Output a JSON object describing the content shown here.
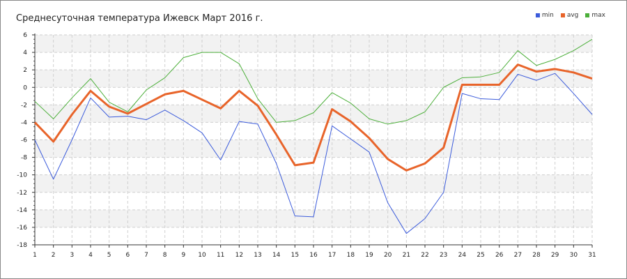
{
  "chart_data": {
    "type": "line",
    "title": "Среднесуточная температура Ижевск  Март 2016 г.",
    "x": [
      1,
      2,
      3,
      4,
      5,
      6,
      7,
      8,
      9,
      10,
      11,
      12,
      13,
      14,
      15,
      16,
      17,
      18,
      19,
      20,
      21,
      22,
      23,
      24,
      25,
      26,
      27,
      28,
      29,
      30,
      31
    ],
    "xlim": [
      1,
      31
    ],
    "ylim": [
      -18,
      6
    ],
    "yticks": [
      6,
      4,
      2,
      0,
      -2,
      -4,
      -6,
      -8,
      -10,
      -12,
      -14,
      -16,
      -18
    ],
    "grid": true,
    "legend_position": "top-right",
    "series": [
      {
        "name": "min",
        "color": "#3b5bdb",
        "values": [
          -6.0,
          -10.5,
          -6.0,
          -1.2,
          -3.4,
          -3.3,
          -3.7,
          -2.6,
          -3.8,
          -5.2,
          -8.3,
          -3.9,
          -4.2,
          -8.7,
          -14.7,
          -14.8,
          -4.4,
          -5.9,
          -7.4,
          -13.2,
          -16.7,
          -15.0,
          -12.0,
          -0.7,
          -1.3,
          -1.4,
          1.5,
          0.8,
          1.6,
          -0.7,
          -3.1
        ]
      },
      {
        "name": "avg",
        "color": "#e8642a",
        "values": [
          -4.0,
          -6.2,
          -3.1,
          -0.4,
          -2.2,
          -3.0,
          -1.9,
          -0.8,
          -0.4,
          -1.4,
          -2.4,
          -0.4,
          -2.1,
          -5.4,
          -8.9,
          -8.6,
          -2.5,
          -3.9,
          -5.8,
          -8.2,
          -9.5,
          -8.7,
          -6.9,
          0.3,
          0.3,
          0.3,
          2.6,
          1.8,
          2.1,
          1.7,
          1.0
        ]
      },
      {
        "name": "max",
        "color": "#4caf3a",
        "values": [
          -1.6,
          -3.6,
          -1.2,
          1.0,
          -1.7,
          -2.8,
          -0.3,
          1.1,
          3.4,
          4.0,
          4.0,
          2.7,
          -1.3,
          -4.0,
          -3.8,
          -2.9,
          -0.6,
          -1.8,
          -3.6,
          -4.2,
          -3.8,
          -2.8,
          0.0,
          1.1,
          1.2,
          1.7,
          4.2,
          2.5,
          3.2,
          4.2,
          5.5
        ]
      }
    ]
  }
}
